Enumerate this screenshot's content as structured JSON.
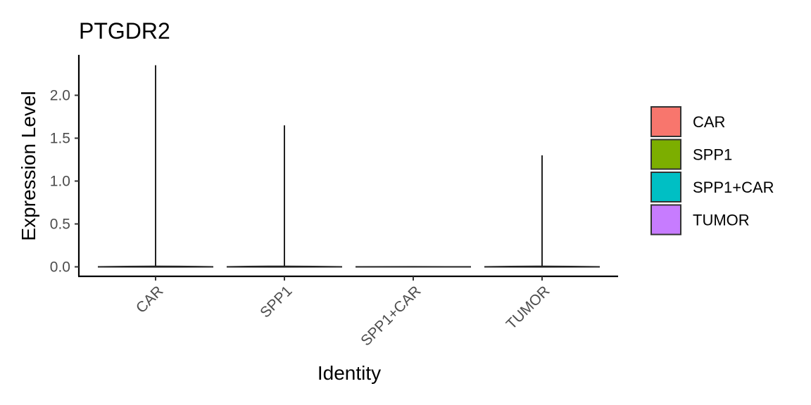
{
  "chart_data": {
    "type": "violin",
    "title": "PTGDR2",
    "xlabel": "Identity",
    "ylabel": "Expression Level",
    "categories": [
      "CAR",
      "SPP1",
      "SPP1+CAR",
      "TUMOR"
    ],
    "max_values": [
      2.35,
      1.65,
      0.0,
      1.3
    ],
    "colors": [
      "#F8766D",
      "#7CAE00",
      "#00BFC4",
      "#C77CFF"
    ],
    "ylim": [
      -0.1,
      2.45
    ],
    "yticks": [
      0.0,
      0.5,
      1.0,
      1.5,
      2.0
    ],
    "ytick_labels": [
      "0.0",
      "0.5",
      "1.0",
      "1.5",
      "2.0"
    ],
    "grid": false,
    "legend": {
      "placement": "right",
      "entries": [
        "CAR",
        "SPP1",
        "SPP1+CAR",
        "TUMOR"
      ]
    }
  }
}
